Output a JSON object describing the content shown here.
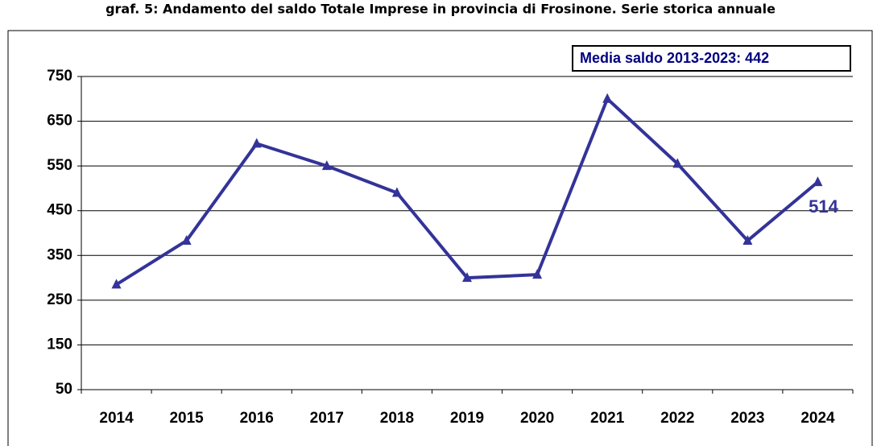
{
  "chart_data": {
    "type": "line",
    "title": "graf. 5: Andamento del saldo Totale Imprese in provincia di Frosinone. Serie storica annuale",
    "annotation": "Media saldo 2013-2023:  442",
    "categories": [
      "2014",
      "2015",
      "2016",
      "2017",
      "2018",
      "2019",
      "2020",
      "2021",
      "2022",
      "2023",
      "2024"
    ],
    "series": [
      {
        "name": "Saldo",
        "color": "#333399",
        "values": [
          285,
          383,
          600,
          550,
          490,
          300,
          307,
          700,
          555,
          383,
          514
        ]
      }
    ],
    "ylim": [
      50,
      750
    ],
    "yticks": [
      50,
      150,
      250,
      350,
      450,
      550,
      650,
      750
    ],
    "grid": true
  }
}
